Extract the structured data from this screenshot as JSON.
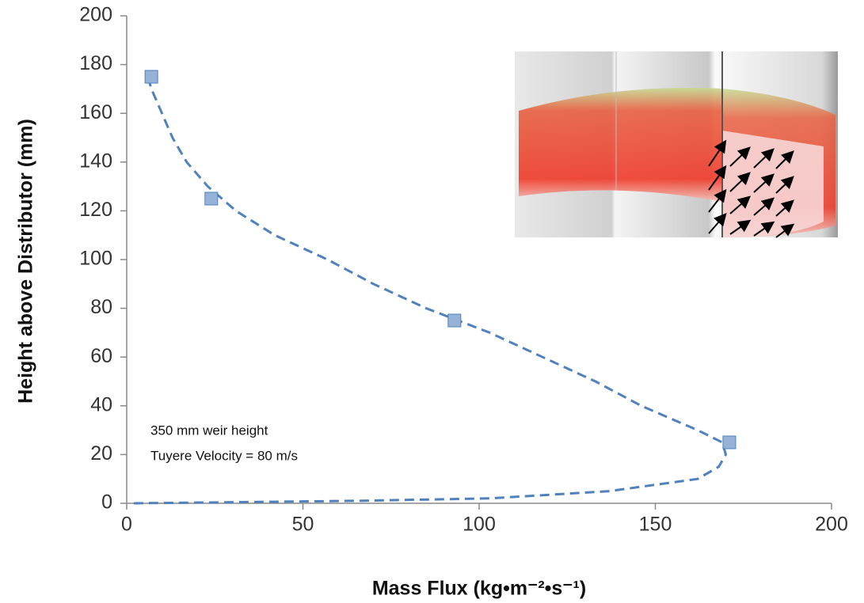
{
  "chart_data": {
    "type": "scatter",
    "xlabel": "Mass Flux (kg•m⁻²•s⁻¹)",
    "ylabel": "Height above Distributor (mm)",
    "xlim": [
      0,
      200
    ],
    "ylim": [
      0,
      200
    ],
    "xticks": [
      0,
      50,
      100,
      150,
      200
    ],
    "yticks": [
      0,
      20,
      40,
      60,
      80,
      100,
      120,
      140,
      160,
      180,
      200
    ],
    "series": [
      {
        "color": "#95b3d7",
        "edge_color": "#4f81bd",
        "marker": "square",
        "x": [
          7,
          24,
          93,
          171
        ],
        "y": [
          175,
          125,
          75,
          25
        ]
      }
    ],
    "trendline": {
      "color": "#4f81bd",
      "style": "dashed",
      "x": [
        2,
        65,
        103,
        137,
        162,
        168,
        170,
        169,
        162,
        146,
        133,
        118,
        103,
        94,
        85,
        70,
        57,
        42,
        31,
        23,
        17,
        13,
        10,
        7,
        6
      ],
      "y": [
        0,
        1,
        2,
        5,
        10,
        15,
        20,
        25,
        30,
        40,
        50,
        60,
        70,
        75,
        80,
        90,
        100,
        110,
        120,
        130,
        140,
        150,
        160,
        170,
        175
      ]
    },
    "annotations": [
      "350 mm weir height",
      "Tuyere Velocity = 80 m/s"
    ]
  }
}
